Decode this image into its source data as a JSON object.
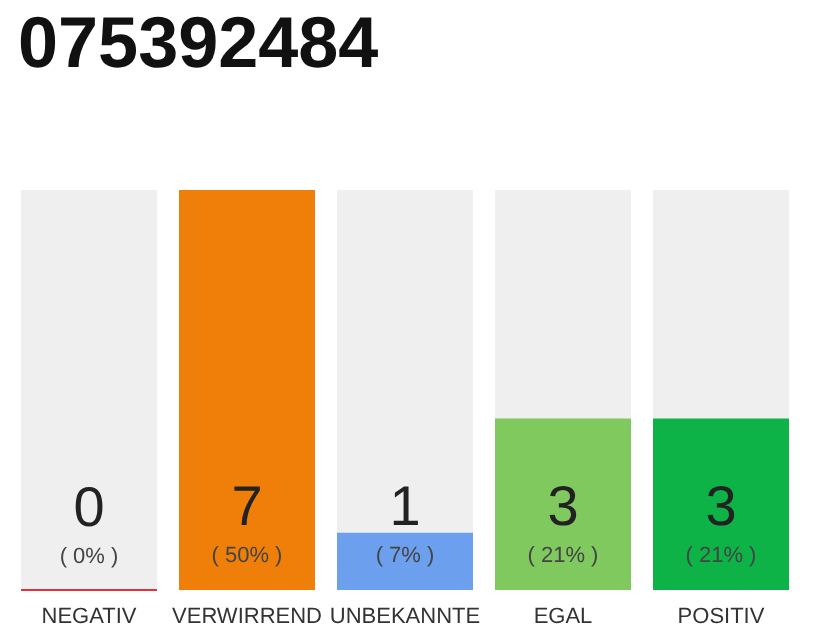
{
  "chart_data": {
    "type": "bar",
    "title": "075392484",
    "categories": [
      "NEGATIV",
      "VERWIRREND",
      "UNBEKANNTE",
      "EGAL",
      "POSITIV"
    ],
    "values": [
      0,
      7,
      1,
      3,
      3
    ],
    "colors": [
      "#e8303c",
      "#f07f0a",
      "#6ca0ee",
      "#7fc95f",
      "#0db346"
    ],
    "value_labels": [
      "0\n( 0% )",
      "7\n( 50% )",
      "1\n( 7% )",
      "3\n( 21% )",
      "3\n( 21% )"
    ]
  }
}
